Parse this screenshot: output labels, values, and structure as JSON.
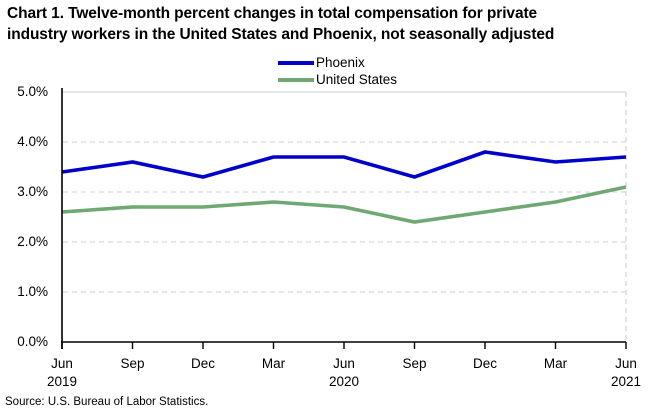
{
  "title_lines": [
    "Chart 1. Twelve-month percent changes in total compensation for private",
    "industry workers in the United States and Phoenix, not seasonally adjusted"
  ],
  "source": "Source: U.S. Bureau of Labor Statistics.",
  "colors": {
    "phoenix_line": "#0000CC",
    "us_line": "#6FA873",
    "gridline": "#D6D6D6",
    "axis": "#000000"
  },
  "chart_data": {
    "type": "line",
    "title": "Chart 1. Twelve-month percent changes in total compensation for private industry workers in the United States and Phoenix, not seasonally adjusted",
    "categories": [
      "Jun 2019",
      "Sep 2019",
      "Dec 2019",
      "Mar 2020",
      "Jun 2020",
      "Sep 2020",
      "Dec 2020",
      "Mar 2021",
      "Jun 2021"
    ],
    "x_tick_labels": [
      "Jun",
      "Sep",
      "Dec",
      "Mar",
      "Jun",
      "Sep",
      "Dec",
      "Mar",
      "Jun"
    ],
    "x_year_labels": [
      {
        "index": 0,
        "label": "2019"
      },
      {
        "index": 4,
        "label": "2020"
      },
      {
        "index": 8,
        "label": "2021"
      }
    ],
    "series": [
      {
        "name": "Phoenix",
        "color": "#0000CC",
        "values": [
          3.4,
          3.6,
          3.3,
          3.7,
          3.7,
          3.3,
          3.8,
          3.6,
          3.7
        ]
      },
      {
        "name": "United States",
        "color": "#6FA873",
        "values": [
          2.6,
          2.7,
          2.7,
          2.8,
          2.7,
          2.4,
          2.6,
          2.8,
          3.1
        ]
      }
    ],
    "ylim": [
      0,
      5
    ],
    "y_ticks": [
      "0.0%",
      "1.0%",
      "2.0%",
      "3.0%",
      "4.0%",
      "5.0%"
    ],
    "y_tick_values": [
      0,
      1,
      2,
      3,
      4,
      5
    ],
    "grid": "horizontal-dashed",
    "legend_position": "top-center"
  }
}
